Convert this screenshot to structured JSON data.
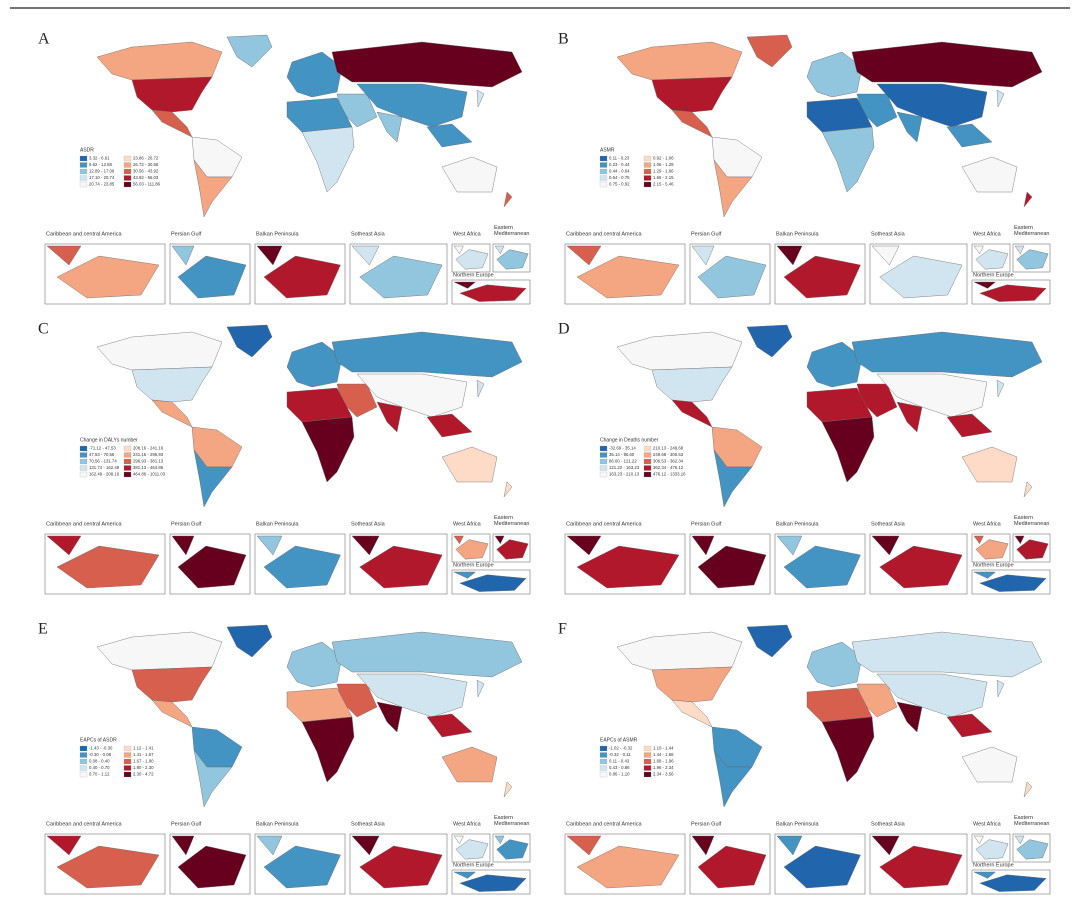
{
  "colors": [
    "#2166ac",
    "#4393c3",
    "#92c5de",
    "#d1e5f0",
    "#f7f7f7",
    "#fddbc7",
    "#f4a582",
    "#d6604d",
    "#b2182b",
    "#67001f"
  ],
  "panels": [
    {
      "letter": "A",
      "legend_title": "ASDR",
      "legend_labels": [
        "3.32 - 6.61",
        "6.62 - 12.88",
        "12.89 - 17.09",
        "17.10 - 20.74",
        "20.74 - 23.85",
        "23.86 - 26.72",
        "26.72 - 30.56",
        "30.56 - 43.92",
        "43.92 - 56.03",
        "56.03 - 111.86"
      ],
      "inset_titles": [
        "Caribbean and central America",
        "Persian Gulf",
        "Balkan Peninsula",
        "Sotheast Asia",
        "West Africa",
        "Eastern Mediterranean",
        "Northern Europe"
      ]
    },
    {
      "letter": "B",
      "legend_title": "ASMR",
      "legend_labels": [
        "0.11 - 0.23",
        "0.23 - 0.44",
        "0.44 - 0.64",
        "0.64 - 0.75",
        "0.75 - 0.92",
        "0.92 - 1.06",
        "1.06 - 1.29",
        "1.29 - 1.66",
        "1.66 - 2.15",
        "2.15 - 5.46"
      ],
      "inset_titles": [
        "Caribbean and central America",
        "Persian Gulf",
        "Balkan Peninsula",
        "Sotheast Asia",
        "West Africa",
        "Eastern Mediterranean",
        "Northern Europe"
      ]
    },
    {
      "letter": "C",
      "legend_title": "Change in DALYs number",
      "legend_labels": [
        "-71.12 - 47.53",
        "47.53 - 70.56",
        "70.56 - 131.74",
        "131.74 - 162.49",
        "162.49 - 208.16",
        "208.16 - 241.16",
        "241.16 - 296.93",
        "296.93 - 381.13",
        "381.13 - 464.86",
        "464.86 - 1011.03"
      ],
      "inset_titles": [
        "Caribbean and central America",
        "Persian Gulf",
        "Balkan Peninsula",
        "Sotheast Asia",
        "West Africa",
        "Eastern Mediterranean",
        "Northern Europe"
      ]
    },
    {
      "letter": "D",
      "legend_title": "Change in Deaths number",
      "legend_labels": [
        "-32.69 - 35.14",
        "35.14 - 86.60",
        "86.60 - 121.22",
        "121.22 - 163.23",
        "163.23 - 210.13",
        "210.13 - 249.68",
        "249.68 - 306.53",
        "306.53 - 362.34",
        "362.34 - 476.12",
        "476.12 - 1333.16"
      ],
      "inset_titles": [
        "Caribbean and central America",
        "Persian Gulf",
        "Balkan Peninsula",
        "Sotheast Asia",
        "West Africa",
        "Eastern Mediterranean",
        "Northern Europe"
      ]
    },
    {
      "letter": "E",
      "legend_title": "EAPCs of ASDR",
      "legend_labels": [
        "-1.43 - -0.30",
        "-0.30 - 0.08",
        "0.08 - 0.40",
        "0.40 - 0.70",
        "0.70 - 1.12",
        "1.12 - 1.41",
        "1.41 - 1.67",
        "1.67 - 1.90",
        "1.90 - 2.30",
        "2.30 - 4.72"
      ],
      "inset_titles": [
        "Caribbean and central America",
        "Persian Gulf",
        "Balkan Peninsula",
        "Sotheast Asia",
        "West Africa",
        "Eastern Mediterranean",
        "Northern Europe"
      ]
    },
    {
      "letter": "F",
      "legend_title": "EAPCs of ASMR",
      "legend_labels": [
        "-1.02 - -0.32",
        "-0.32 - 0.11",
        "0.11 - 0.43",
        "0.43 - 0.86",
        "0.86 - 1.10",
        "1.10 - 1.44",
        "1.44 - 1.68",
        "1.68 - 1.96",
        "1.96 - 2.34",
        "2.34 - 3.56"
      ],
      "inset_titles": [
        "Caribbean and central America",
        "Persian Gulf",
        "Balkan Peninsula",
        "Sotheast Asia",
        "West Africa",
        "Eastern Mediterranean",
        "Northern Europe"
      ]
    }
  ]
}
